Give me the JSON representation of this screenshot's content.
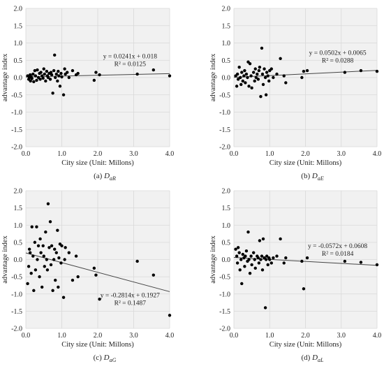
{
  "chart_data": [
    {
      "type": "scatter",
      "panel_label": "(a)",
      "panel_symbol": "D",
      "panel_subscript": "aR",
      "xlabel": "City size (Unit: Millons)",
      "ylabel": "advantage index",
      "xlim": [
        0,
        4
      ],
      "ylim": [
        -2,
        2
      ],
      "x_ticks": [
        "0.0",
        "1.0",
        "2.0",
        "3.0",
        "4.0"
      ],
      "y_ticks": [
        "2.0",
        "1.5",
        "1.0",
        "0.5",
        "0.0",
        "-0.5",
        "-1.0",
        "-1.5",
        "-2.0"
      ],
      "grid": true,
      "trendline": {
        "slope": 0.0241,
        "intercept": 0.018,
        "equation": "y = 0.0241x + 0.018",
        "r2": "R² = 0.0125"
      },
      "points": [
        [
          0.05,
          0.05
        ],
        [
          0.08,
          -0.05
        ],
        [
          0.1,
          0.0
        ],
        [
          0.12,
          0.08
        ],
        [
          0.13,
          -0.1
        ],
        [
          0.15,
          0.02
        ],
        [
          0.17,
          -0.03
        ],
        [
          0.2,
          0.1
        ],
        [
          0.22,
          -0.12
        ],
        [
          0.25,
          0.2
        ],
        [
          0.27,
          0.05
        ],
        [
          0.3,
          -0.08
        ],
        [
          0.32,
          0.22
        ],
        [
          0.35,
          0.0
        ],
        [
          0.38,
          0.12
        ],
        [
          0.4,
          -0.05
        ],
        [
          0.42,
          0.15
        ],
        [
          0.45,
          0.05
        ],
        [
          0.48,
          -0.02
        ],
        [
          0.5,
          0.25
        ],
        [
          0.52,
          0.1
        ],
        [
          0.55,
          -0.1
        ],
        [
          0.58,
          0.18
        ],
        [
          0.6,
          0.05
        ],
        [
          0.62,
          0.0
        ],
        [
          0.65,
          0.12
        ],
        [
          0.68,
          -0.05
        ],
        [
          0.7,
          0.15
        ],
        [
          0.72,
          0.08
        ],
        [
          0.75,
          -0.45
        ],
        [
          0.78,
          0.2
        ],
        [
          0.8,
          0.65
        ],
        [
          0.82,
          0.0
        ],
        [
          0.85,
          0.1
        ],
        [
          0.88,
          -0.1
        ],
        [
          0.9,
          0.18
        ],
        [
          0.92,
          0.05
        ],
        [
          0.95,
          -0.25
        ],
        [
          0.98,
          0.12
        ],
        [
          1.0,
          0.02
        ],
        [
          1.05,
          -0.5
        ],
        [
          1.08,
          0.25
        ],
        [
          1.1,
          0.1
        ],
        [
          1.15,
          0.15
        ],
        [
          1.2,
          0.0
        ],
        [
          1.3,
          0.2
        ],
        [
          1.4,
          0.08
        ],
        [
          1.45,
          0.12
        ],
        [
          1.9,
          -0.08
        ],
        [
          1.95,
          0.15
        ],
        [
          2.05,
          0.08
        ],
        [
          3.1,
          0.1
        ],
        [
          3.55,
          0.22
        ],
        [
          4.0,
          0.05
        ]
      ]
    },
    {
      "type": "scatter",
      "panel_label": "(b)",
      "panel_symbol": "D",
      "panel_subscript": "aE",
      "xlabel": "City size (Unit: Millons)",
      "ylabel": "advantage index",
      "xlim": [
        0,
        4
      ],
      "ylim": [
        -2,
        2
      ],
      "x_ticks": [
        "0.0",
        "1.0",
        "2.0",
        "3.0",
        "4.0"
      ],
      "y_ticks": [
        "2.0",
        "1.5",
        "1.0",
        "0.5",
        "0.0",
        "-0.5",
        "-1.0",
        "-1.5",
        "-2.0"
      ],
      "grid": true,
      "trendline": {
        "slope": 0.0502,
        "intercept": 0.0065,
        "equation": "y = 0.0502x + 0.0065",
        "r2": "R² = 0.0288"
      },
      "points": [
        [
          0.05,
          0.05
        ],
        [
          0.08,
          -0.25
        ],
        [
          0.1,
          0.1
        ],
        [
          0.12,
          -0.05
        ],
        [
          0.15,
          0.3
        ],
        [
          0.18,
          0.0
        ],
        [
          0.2,
          -0.2
        ],
        [
          0.22,
          0.15
        ],
        [
          0.25,
          -0.1
        ],
        [
          0.28,
          0.05
        ],
        [
          0.3,
          0.2
        ],
        [
          0.32,
          -0.15
        ],
        [
          0.35,
          0.1
        ],
        [
          0.38,
          0.0
        ],
        [
          0.4,
          0.45
        ],
        [
          0.42,
          -0.25
        ],
        [
          0.45,
          0.4
        ],
        [
          0.48,
          0.05
        ],
        [
          0.5,
          -0.3
        ],
        [
          0.55,
          0.15
        ],
        [
          0.58,
          -0.1
        ],
        [
          0.6,
          0.25
        ],
        [
          0.62,
          0.0
        ],
        [
          0.65,
          0.1
        ],
        [
          0.68,
          -0.05
        ],
        [
          0.7,
          0.2
        ],
        [
          0.72,
          0.3
        ],
        [
          0.75,
          -0.55
        ],
        [
          0.78,
          0.85
        ],
        [
          0.8,
          0.1
        ],
        [
          0.82,
          -0.2
        ],
        [
          0.85,
          0.25
        ],
        [
          0.88,
          0.0
        ],
        [
          0.9,
          -0.5
        ],
        [
          0.92,
          0.15
        ],
        [
          0.95,
          0.05
        ],
        [
          0.98,
          -0.1
        ],
        [
          1.0,
          0.2
        ],
        [
          1.05,
          0.25
        ],
        [
          1.1,
          0.0
        ],
        [
          1.2,
          0.1
        ],
        [
          1.3,
          0.55
        ],
        [
          1.4,
          0.05
        ],
        [
          1.45,
          -0.15
        ],
        [
          1.9,
          0.0
        ],
        [
          1.95,
          0.18
        ],
        [
          2.05,
          0.2
        ],
        [
          3.1,
          0.15
        ],
        [
          3.55,
          0.2
        ],
        [
          4.0,
          0.18
        ]
      ]
    },
    {
      "type": "scatter",
      "panel_label": "(c)",
      "panel_symbol": "D",
      "panel_subscript": "aG",
      "xlabel": "City size (Unit: Millons)",
      "ylabel": "advantage index",
      "xlim": [
        0,
        4
      ],
      "ylim": [
        -2,
        2
      ],
      "x_ticks": [
        "0.0",
        "1.0",
        "2.0",
        "3.0",
        "4.0"
      ],
      "y_ticks": [
        "2.0",
        "1.5",
        "1.0",
        "0.5",
        "0.0",
        "-0.5",
        "-1.0",
        "-1.5",
        "-2.0"
      ],
      "grid": true,
      "trendline": {
        "slope": -0.2814,
        "intercept": 0.1927,
        "equation": "y = -0.2814x + 0.1927",
        "r2": "R² = 0.1487"
      },
      "points": [
        [
          0.05,
          -0.7
        ],
        [
          0.08,
          -0.2
        ],
        [
          0.1,
          0.3
        ],
        [
          0.12,
          0.2
        ],
        [
          0.15,
          -0.4
        ],
        [
          0.17,
          0.95
        ],
        [
          0.2,
          0.1
        ],
        [
          0.22,
          -0.9
        ],
        [
          0.25,
          0.5
        ],
        [
          0.27,
          -0.3
        ],
        [
          0.3,
          0.95
        ],
        [
          0.32,
          0.0
        ],
        [
          0.35,
          0.4
        ],
        [
          0.38,
          -0.5
        ],
        [
          0.4,
          0.6
        ],
        [
          0.42,
          0.2
        ],
        [
          0.45,
          -0.8
        ],
        [
          0.48,
          0.4
        ],
        [
          0.5,
          0.1
        ],
        [
          0.52,
          -0.2
        ],
        [
          0.55,
          0.8
        ],
        [
          0.58,
          0.0
        ],
        [
          0.6,
          -0.3
        ],
        [
          0.62,
          1.62
        ],
        [
          0.65,
          0.35
        ],
        [
          0.68,
          1.1
        ],
        [
          0.7,
          -0.15
        ],
        [
          0.72,
          0.4
        ],
        [
          0.75,
          -0.9
        ],
        [
          0.78,
          0.0
        ],
        [
          0.8,
          0.3
        ],
        [
          0.82,
          -0.6
        ],
        [
          0.85,
          0.2
        ],
        [
          0.88,
          0.85
        ],
        [
          0.9,
          -0.8
        ],
        [
          0.92,
          0.05
        ],
        [
          0.95,
          0.45
        ],
        [
          0.98,
          -0.1
        ],
        [
          1.0,
          0.4
        ],
        [
          1.05,
          -1.1
        ],
        [
          1.08,
          0.0
        ],
        [
          1.1,
          0.35
        ],
        [
          1.2,
          0.2
        ],
        [
          1.3,
          -0.6
        ],
        [
          1.4,
          0.1
        ],
        [
          1.45,
          -0.5
        ],
        [
          1.9,
          -0.25
        ],
        [
          1.95,
          -0.45
        ],
        [
          2.05,
          -1.15
        ],
        [
          3.1,
          -0.05
        ],
        [
          3.55,
          -0.45
        ],
        [
          4.0,
          -1.62
        ]
      ]
    },
    {
      "type": "scatter",
      "panel_label": "(d)",
      "panel_symbol": "D",
      "panel_subscript": "aL",
      "xlabel": "City size (Unit: Millons)",
      "ylabel": "advantage index",
      "xlim": [
        0,
        4
      ],
      "ylim": [
        -2,
        2
      ],
      "x_ticks": [
        "0.0",
        "1.0",
        "2.0",
        "3.0",
        "4.0"
      ],
      "y_ticks": [
        "2.0",
        "1.5",
        "1.0",
        "0.5",
        "0.0",
        "-0.5",
        "-1.0",
        "-1.5",
        "-2.0"
      ],
      "grid": true,
      "trendline": {
        "slope": -0.0572,
        "intercept": 0.0608,
        "equation": "y = -0.0572x + 0.0608",
        "r2": "R² = 0.0184"
      },
      "points": [
        [
          0.05,
          0.3
        ],
        [
          0.08,
          0.1
        ],
        [
          0.1,
          -0.1
        ],
        [
          0.12,
          0.35
        ],
        [
          0.15,
          0.2
        ],
        [
          0.17,
          -0.3
        ],
        [
          0.2,
          0.0
        ],
        [
          0.22,
          -0.7
        ],
        [
          0.25,
          0.15
        ],
        [
          0.28,
          0.05
        ],
        [
          0.3,
          -0.2
        ],
        [
          0.32,
          0.1
        ],
        [
          0.35,
          0.25
        ],
        [
          0.38,
          -0.05
        ],
        [
          0.4,
          0.8
        ],
        [
          0.42,
          0.0
        ],
        [
          0.45,
          -0.4
        ],
        [
          0.48,
          0.1
        ],
        [
          0.5,
          -0.15
        ],
        [
          0.55,
          0.2
        ],
        [
          0.58,
          0.0
        ],
        [
          0.6,
          -0.25
        ],
        [
          0.65,
          0.1
        ],
        [
          0.68,
          0.05
        ],
        [
          0.7,
          -0.1
        ],
        [
          0.72,
          0.55
        ],
        [
          0.75,
          0.0
        ],
        [
          0.78,
          0.1
        ],
        [
          0.8,
          -0.3
        ],
        [
          0.82,
          0.6
        ],
        [
          0.85,
          0.05
        ],
        [
          0.88,
          -1.4
        ],
        [
          0.9,
          0.0
        ],
        [
          0.92,
          0.1
        ],
        [
          0.95,
          -0.15
        ],
        [
          0.98,
          0.05
        ],
        [
          1.0,
          0.0
        ],
        [
          1.05,
          -0.1
        ],
        [
          1.1,
          0.05
        ],
        [
          1.2,
          0.1
        ],
        [
          1.3,
          0.6
        ],
        [
          1.4,
          -0.1
        ],
        [
          1.45,
          0.05
        ],
        [
          1.9,
          -0.05
        ],
        [
          1.95,
          -0.85
        ],
        [
          2.05,
          0.05
        ],
        [
          3.1,
          -0.05
        ],
        [
          3.55,
          -0.08
        ],
        [
          4.0,
          -0.15
        ]
      ]
    }
  ]
}
